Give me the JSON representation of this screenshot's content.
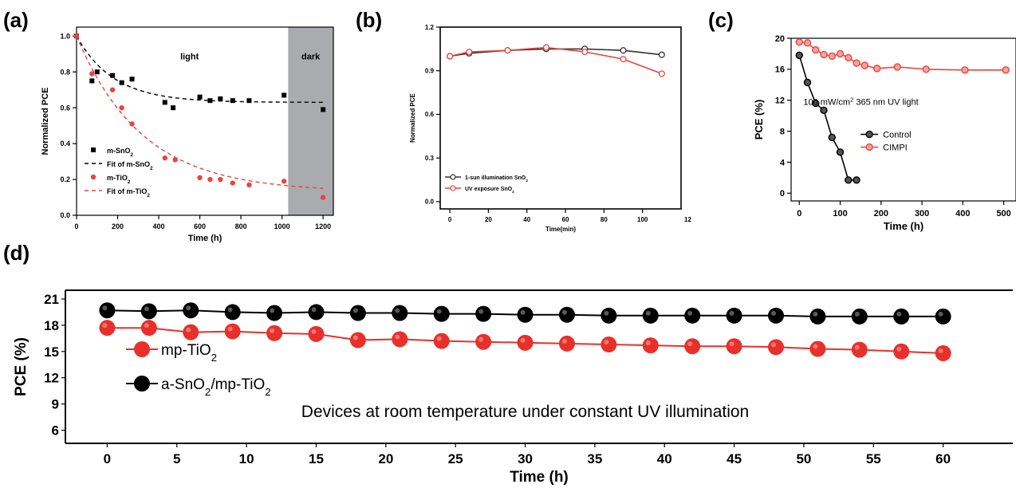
{
  "panels": [
    {
      "letter": "(a)"
    },
    {
      "letter": "(b)"
    },
    {
      "letter": "(c)"
    },
    {
      "letter": "(d)"
    }
  ],
  "chart_data": [
    {
      "panel": "(a)",
      "type": "scatter",
      "xlabel": "Time (h)",
      "ylabel": "Normalized PCE",
      "xlim": [
        0,
        1250
      ],
      "ylim": [
        0,
        1.05
      ],
      "xticks": [
        0,
        200,
        400,
        600,
        800,
        1000,
        1200
      ],
      "yticks": [
        0.0,
        0.2,
        0.4,
        0.6,
        0.8,
        1.0
      ],
      "annotations": [
        "light",
        "dark"
      ],
      "shaded_region": {
        "label": "dark",
        "x_from": 1030,
        "x_to": 1250
      },
      "legend_position": "lower-left",
      "series": [
        {
          "name": "m-SnO₂",
          "marker": "square",
          "color": "#000000",
          "x": [
            0,
            75,
            100,
            175,
            220,
            270,
            430,
            470,
            600,
            650,
            700,
            760,
            840,
            1010,
            1200
          ],
          "y": [
            1.0,
            0.75,
            0.8,
            0.78,
            0.74,
            0.76,
            0.63,
            0.6,
            0.66,
            0.64,
            0.65,
            0.64,
            0.64,
            0.67,
            0.59
          ]
        },
        {
          "name": "Fit of m-SnO₂",
          "line": "dashed",
          "color": "#000000",
          "fit": {
            "type": "exp",
            "a": 0.63,
            "b": 0.37,
            "tau": 180,
            "x_end": 1200
          }
        },
        {
          "name": "m-TiO₂",
          "marker": "circle",
          "color": "#e8453c",
          "x": [
            0,
            75,
            175,
            220,
            270,
            430,
            480,
            600,
            650,
            700,
            760,
            840,
            1010,
            1200
          ],
          "y": [
            1.0,
            0.79,
            0.7,
            0.6,
            0.51,
            0.32,
            0.31,
            0.21,
            0.2,
            0.2,
            0.18,
            0.17,
            0.19,
            0.1
          ]
        },
        {
          "name": "Fit of m-TiO₂",
          "line": "dashed",
          "color": "#e8453c",
          "fit": {
            "type": "exp",
            "a": 0.13,
            "b": 0.87,
            "tau": 320,
            "x_end": 1200
          }
        }
      ]
    },
    {
      "panel": "(b)",
      "type": "line",
      "xlabel": "Time(min)",
      "ylabel": "Normalized PCE",
      "xlim": [
        -5,
        120
      ],
      "ylim": [
        -0.05,
        1.2
      ],
      "xticks": [
        0,
        20,
        40,
        60,
        80,
        100
      ],
      "xtick_labels": [
        "0",
        "20",
        "40",
        "60",
        "80",
        "100"
      ],
      "extra_tick_label": "12",
      "yticks": [
        0.0,
        0.3,
        0.6,
        0.9,
        1.2
      ],
      "ytick_labels": [
        "0.0",
        "0.3",
        "0.6",
        "0.9",
        "1.2"
      ],
      "legend_position": "lower-left",
      "series": [
        {
          "name": "1-sun illumination SnO₂",
          "color": "#333333",
          "x": [
            0,
            10,
            30,
            50,
            70,
            90,
            110
          ],
          "y": [
            1.0,
            1.02,
            1.04,
            1.05,
            1.05,
            1.04,
            1.01
          ]
        },
        {
          "name": "UV exposure SnO₂",
          "color": "#e8453c",
          "x": [
            0,
            10,
            30,
            50,
            70,
            90,
            110
          ],
          "y": [
            1.0,
            1.03,
            1.04,
            1.06,
            1.03,
            0.98,
            0.88
          ]
        }
      ]
    },
    {
      "panel": "(c)",
      "type": "line",
      "xlabel": "Time (h)",
      "ylabel": "PCE (%)",
      "xlim": [
        -20,
        530
      ],
      "ylim": [
        -1,
        20
      ],
      "xticks": [
        0,
        100,
        200,
        300,
        400,
        500
      ],
      "yticks": [
        0,
        4,
        8,
        12,
        16,
        20
      ],
      "annotation": "100 mW/cm² 365 nm UV light",
      "legend_position": "right",
      "series": [
        {
          "name": "Control",
          "color": "#000000",
          "x": [
            0,
            20,
            40,
            60,
            80,
            100,
            120,
            140
          ],
          "y": [
            17.8,
            14.3,
            11.6,
            10.7,
            7.2,
            5.3,
            1.7,
            1.7
          ],
          "x_fix": [
            0,
            20,
            40,
            60,
            80,
            100,
            120,
            140
          ]
        },
        {
          "name": "CIMPI",
          "color": "#e8453c",
          "x": [
            0,
            20,
            40,
            60,
            80,
            100,
            120,
            140,
            160,
            190,
            240,
            310,
            405,
            505
          ],
          "y": [
            19.5,
            19.4,
            18.5,
            17.9,
            17.7,
            18.0,
            17.5,
            16.8,
            16.5,
            16.1,
            16.3,
            16.0,
            15.9,
            15.9
          ]
        }
      ]
    },
    {
      "panel": "(d)",
      "type": "line",
      "xlabel": "Time (h)",
      "ylabel": "PCE (%)",
      "xlim": [
        -3,
        65
      ],
      "ylim": [
        4.5,
        22
      ],
      "xticks": [
        0,
        5,
        10,
        15,
        20,
        25,
        30,
        35,
        40,
        45,
        50,
        55,
        60
      ],
      "yticks": [
        6,
        9,
        12,
        15,
        18,
        21
      ],
      "annotation": "Devices at room temperature under constant UV illumination",
      "legend_position": "left",
      "series": [
        {
          "name": "mp-TiO₂",
          "color": "#e8302a",
          "x": [
            0,
            3,
            6,
            9,
            12,
            15,
            18,
            21,
            24,
            27,
            30,
            33,
            36,
            39,
            42,
            45,
            48,
            51,
            54,
            57,
            60
          ],
          "y": [
            17.7,
            17.7,
            17.2,
            17.3,
            17.1,
            17.0,
            16.3,
            16.4,
            16.2,
            16.1,
            16.0,
            15.9,
            15.8,
            15.7,
            15.6,
            15.6,
            15.5,
            15.3,
            15.2,
            15.0,
            14.8
          ]
        },
        {
          "name": "a-SnO₂/mp-TiO₂",
          "color": "#000000",
          "x": [
            0,
            3,
            6,
            9,
            12,
            15,
            18,
            21,
            24,
            27,
            30,
            33,
            36,
            39,
            42,
            45,
            48,
            51,
            54,
            57,
            60
          ],
          "y": [
            19.7,
            19.6,
            19.7,
            19.5,
            19.4,
            19.5,
            19.4,
            19.4,
            19.3,
            19.3,
            19.2,
            19.2,
            19.1,
            19.1,
            19.1,
            19.1,
            19.1,
            19.0,
            19.0,
            19.0,
            19.0
          ]
        }
      ]
    }
  ]
}
